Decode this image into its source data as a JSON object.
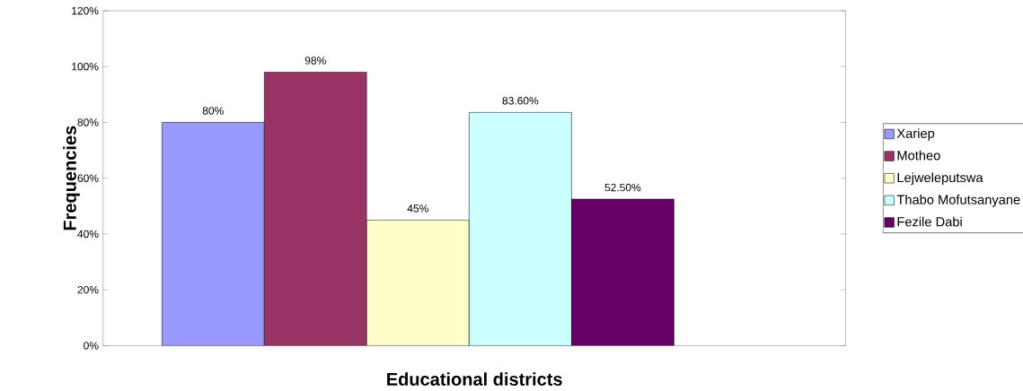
{
  "chart_data": {
    "type": "bar",
    "xlabel": "Educational districts",
    "ylabel": "Frequencies",
    "categories": [
      null
    ],
    "series": [
      {
        "name": "Xariep",
        "color": "#9999ff",
        "values": [
          80
        ],
        "value_labels": [
          "80%"
        ]
      },
      {
        "name": "Motheo",
        "color": "#993366",
        "values": [
          98
        ],
        "value_labels": [
          "98%"
        ]
      },
      {
        "name": "Lejweleputswa",
        "color": "#ffffcc",
        "values": [
          45
        ],
        "value_labels": [
          "45%"
        ]
      },
      {
        "name": "Thabo Mofutsanyane",
        "color": "#ccffff",
        "values": [
          83.6
        ],
        "value_labels": [
          "83.60%"
        ]
      },
      {
        "name": "Fezile Dabi",
        "color": "#660066",
        "values": [
          52.5
        ],
        "value_labels": [
          "52.50%"
        ]
      }
    ],
    "ylim": [
      0,
      120
    ],
    "yticks": [
      {
        "value": 0,
        "label": "0%"
      },
      {
        "value": 20,
        "label": "20%"
      },
      {
        "value": 40,
        "label": "40%"
      },
      {
        "value": 60,
        "label": "60%"
      },
      {
        "value": 80,
        "label": "80%"
      },
      {
        "value": 100,
        "label": "100%"
      },
      {
        "value": 120,
        "label": "120%"
      }
    ],
    "grid": false,
    "legend": "right"
  }
}
